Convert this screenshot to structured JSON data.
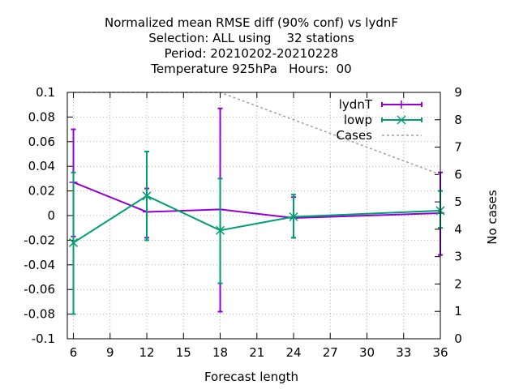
{
  "chart_data": {
    "type": "line",
    "title_lines": [
      "Normalized mean RMSE diff (90% conf) vs lydnF",
      "Selection: ALL using    32 stations",
      "Period: 20210202-20210228",
      "Temperature 925hPa   Hours:  00"
    ],
    "xlabel": "Forecast length",
    "ylabel": "",
    "y2label": "No cases",
    "xlim": [
      5.5,
      36
    ],
    "ylim": [
      -0.1,
      0.1
    ],
    "y2lim": [
      0,
      9
    ],
    "xticks": [
      6,
      9,
      12,
      15,
      18,
      21,
      24,
      27,
      30,
      33,
      36
    ],
    "yticks": [
      -0.1,
      -0.08,
      -0.06,
      -0.04,
      -0.02,
      0,
      0.02,
      0.04,
      0.06,
      0.08,
      0.1
    ],
    "yticks_labels": [
      "-0.1",
      "-0.08",
      "-0.06",
      "-0.04",
      "-0.02",
      "0",
      "0.02",
      "0.04",
      "0.06",
      "0.08",
      "0.1"
    ],
    "y2ticks": [
      0,
      1,
      2,
      3,
      4,
      5,
      6,
      7,
      8,
      9
    ],
    "grid": true,
    "legend_position": "top-right",
    "series": [
      {
        "name": "lydnT",
        "color": "#9400d3",
        "marker": "plus",
        "axis": "y",
        "x": [
          6,
          12,
          18,
          24,
          36
        ],
        "y": [
          0.027,
          0.003,
          0.005,
          -0.002,
          0.002
        ],
        "err_low": [
          -0.017,
          -0.018,
          -0.078,
          -0.018,
          -0.032
        ],
        "err_high": [
          0.07,
          0.022,
          0.087,
          0.015,
          0.035
        ]
      },
      {
        "name": "lowp",
        "color": "#009e73",
        "marker": "x",
        "axis": "y",
        "x": [
          6,
          12,
          18,
          24,
          36
        ],
        "y": [
          -0.022,
          0.016,
          -0.012,
          -0.001,
          0.004
        ],
        "err_low": [
          -0.08,
          -0.02,
          -0.055,
          -0.018,
          -0.01
        ],
        "err_high": [
          0.035,
          0.052,
          0.03,
          0.017,
          0.02
        ]
      },
      {
        "name": "Cases",
        "color": "#a0a0a0",
        "style": "dashed",
        "axis": "y2",
        "x": [
          6,
          12,
          18,
          24,
          36
        ],
        "y": [
          9,
          9,
          9,
          8,
          6
        ]
      }
    ]
  }
}
